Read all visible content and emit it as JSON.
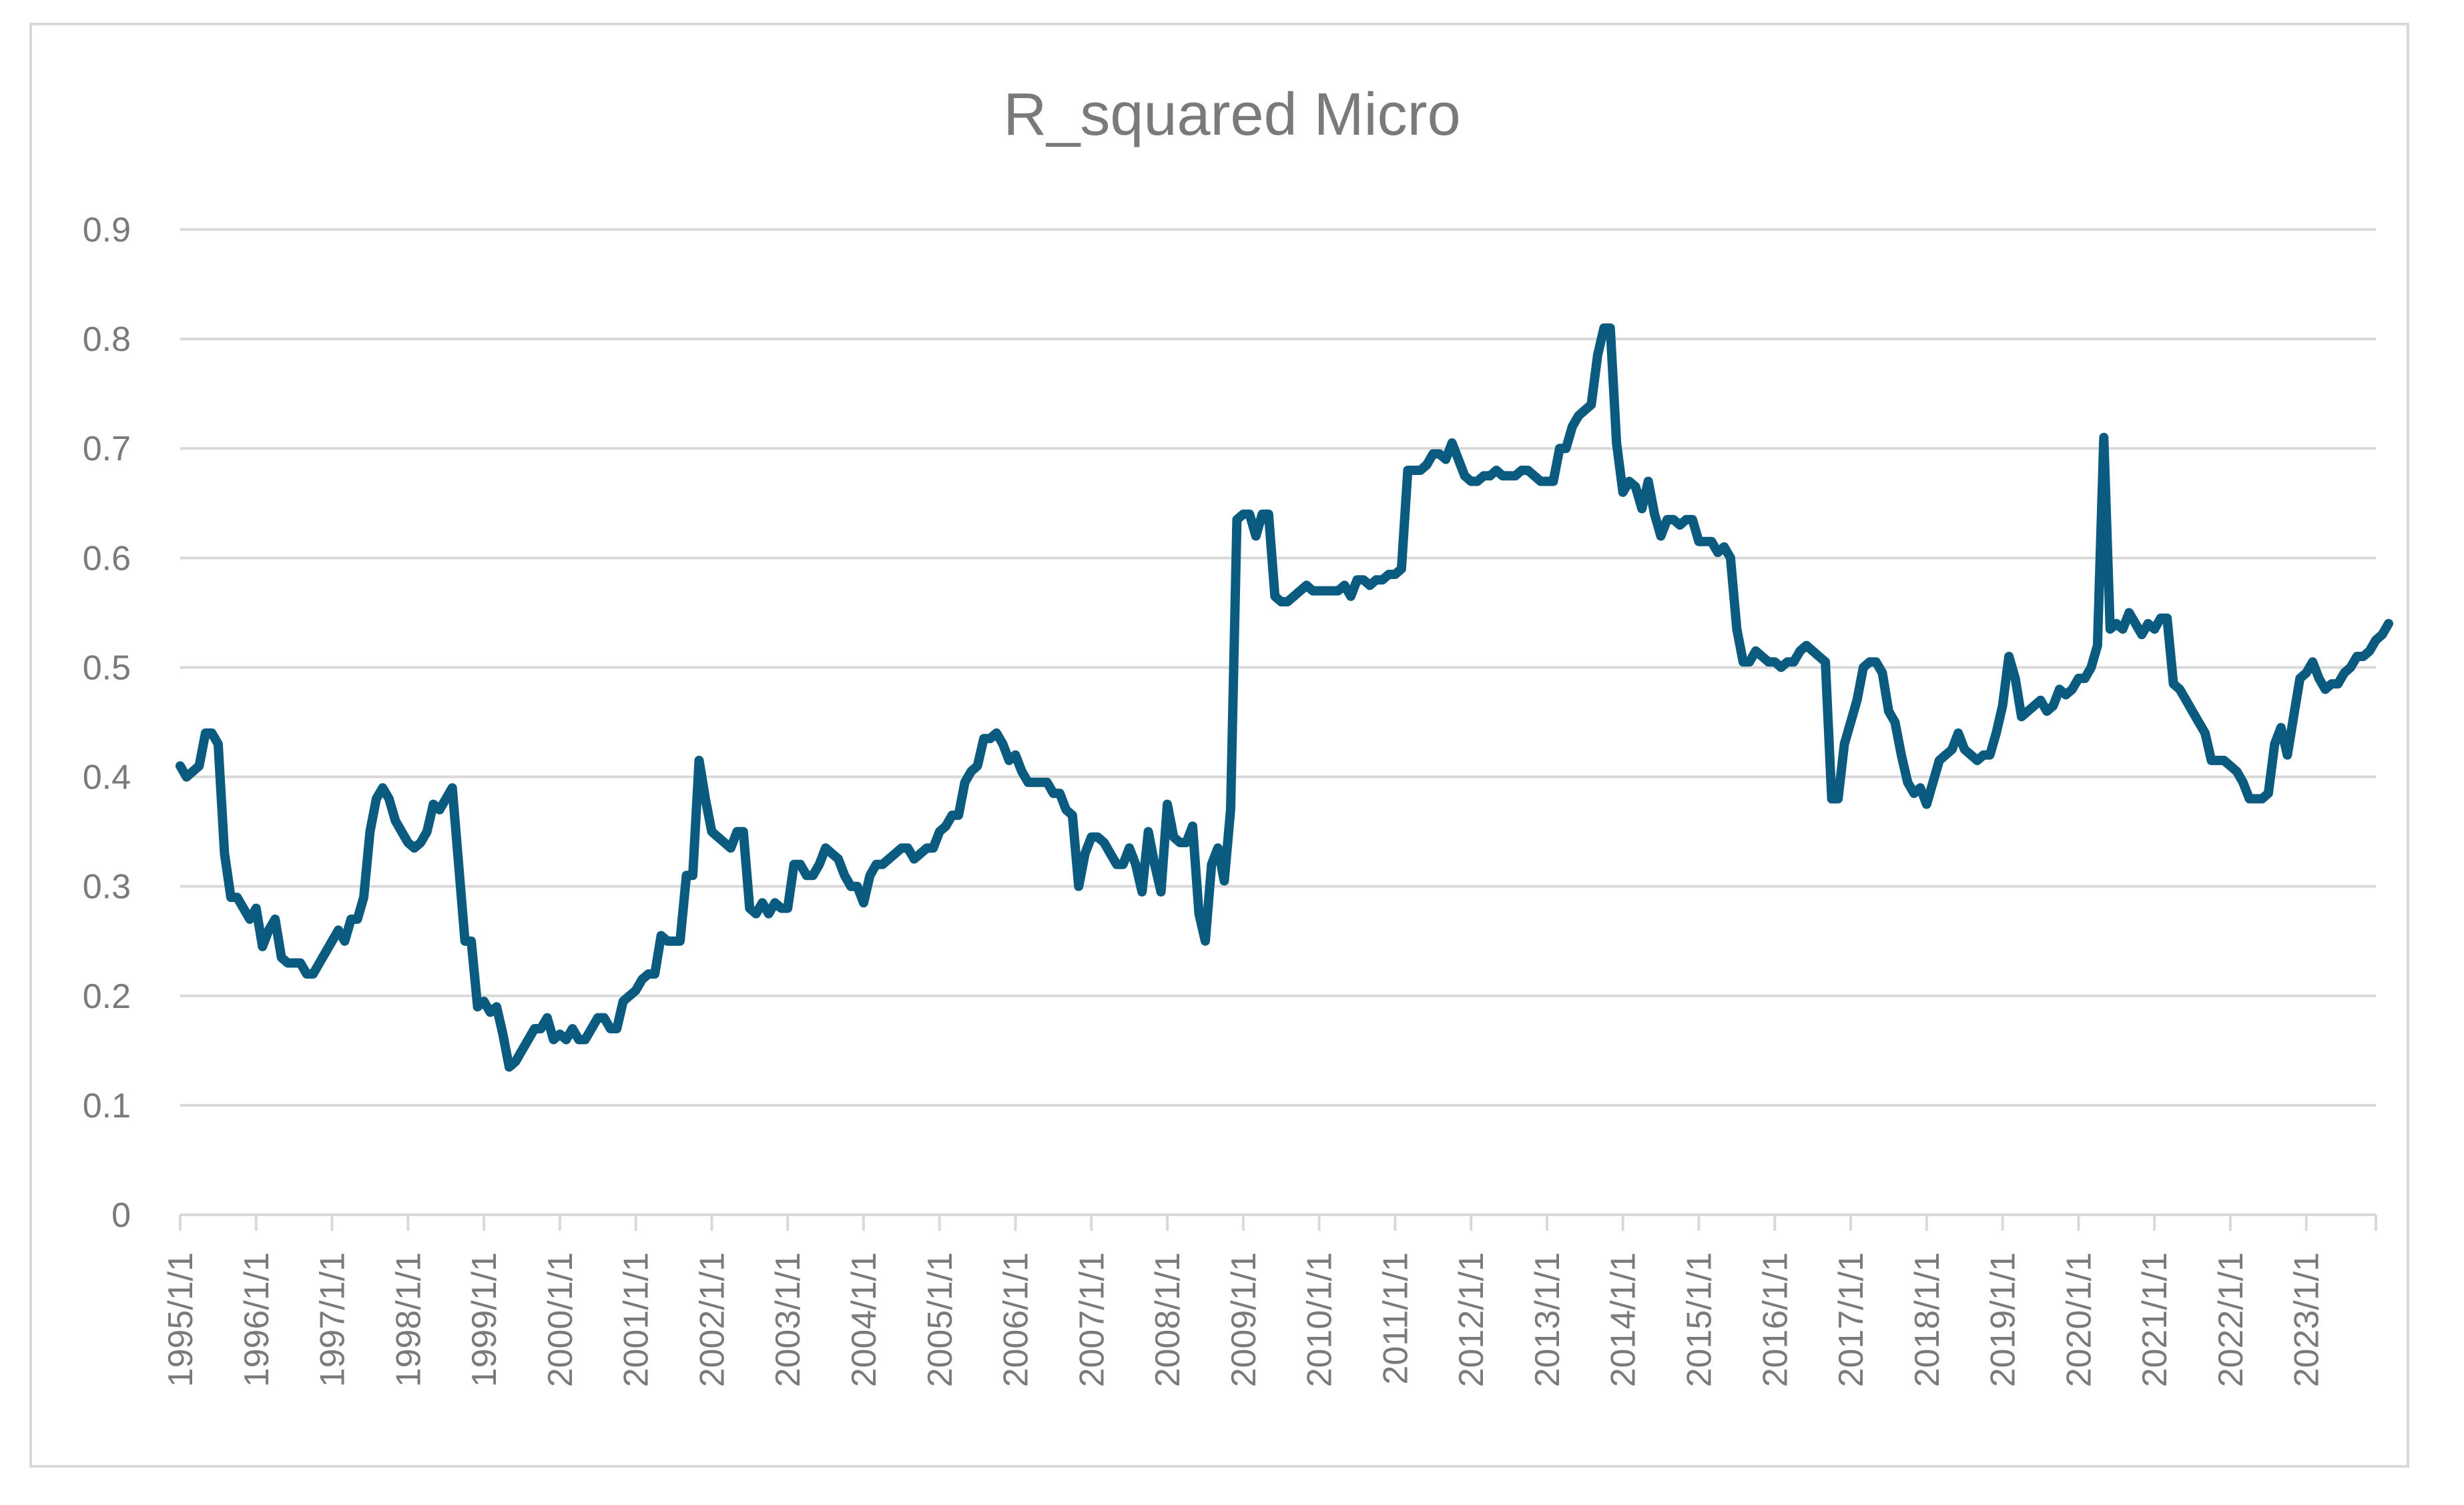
{
  "chart_data": {
    "type": "line",
    "title": "R_squared Micro",
    "xlabel": "",
    "ylabel": "",
    "ylim": [
      0,
      0.9
    ],
    "yticks": [
      "0",
      "0.1",
      "0.2",
      "0.3",
      "0.4",
      "0.5",
      "0.6",
      "0.7",
      "0.8",
      "0.9"
    ],
    "xticks": [
      "1995/1/1",
      "1996/1/1",
      "1997/1/1",
      "1998/1/1",
      "1999/1/1",
      "2000/1/1",
      "2001/1/1",
      "2002/1/1",
      "2003/1/1",
      "2004/1/1",
      "2005/1/1",
      "2006/1/1",
      "2007/1/1",
      "2008/1/1",
      "2009/1/1",
      "2010/1/1",
      "2011/1/1",
      "2012/1/1",
      "2013/1/1",
      "2014/1/1",
      "2015/1/1",
      "2016/1/1",
      "2017/1/1",
      "2018/1/1",
      "2019/1/1",
      "2020/1/1",
      "2021/1/1",
      "2022/1/1",
      "2023/1/1"
    ],
    "xlim": [
      "1995-01",
      "2023-12"
    ],
    "grid": true,
    "legend": "none",
    "series_color": "#0b5b80",
    "points": [
      [
        "1995-01",
        0.41
      ],
      [
        "1995-02",
        0.4
      ],
      [
        "1995-04",
        0.41
      ],
      [
        "1995-05",
        0.44
      ],
      [
        "1995-06",
        0.44
      ],
      [
        "1995-07",
        0.43
      ],
      [
        "1995-08",
        0.33
      ],
      [
        "1995-09",
        0.29
      ],
      [
        "1995-10",
        0.29
      ],
      [
        "1995-11",
        0.28
      ],
      [
        "1995-12",
        0.27
      ],
      [
        "1996-01",
        0.28
      ],
      [
        "1996-02",
        0.245
      ],
      [
        "1996-03",
        0.26
      ],
      [
        "1996-04",
        0.27
      ],
      [
        "1996-05",
        0.235
      ],
      [
        "1996-06",
        0.23
      ],
      [
        "1996-08",
        0.23
      ],
      [
        "1996-09",
        0.22
      ],
      [
        "1996-10",
        0.22
      ],
      [
        "1996-12",
        0.24
      ],
      [
        "1997-02",
        0.26
      ],
      [
        "1997-03",
        0.25
      ],
      [
        "1997-04",
        0.27
      ],
      [
        "1997-05",
        0.27
      ],
      [
        "1997-06",
        0.29
      ],
      [
        "1997-07",
        0.35
      ],
      [
        "1997-08",
        0.38
      ],
      [
        "1997-09",
        0.39
      ],
      [
        "1997-10",
        0.38
      ],
      [
        "1997-11",
        0.36
      ],
      [
        "1997-12",
        0.35
      ],
      [
        "1998-01",
        0.34
      ],
      [
        "1998-02",
        0.335
      ],
      [
        "1998-03",
        0.34
      ],
      [
        "1998-04",
        0.35
      ],
      [
        "1998-05",
        0.375
      ],
      [
        "1998-06",
        0.37
      ],
      [
        "1998-07",
        0.38
      ],
      [
        "1998-08",
        0.39
      ],
      [
        "1998-09",
        0.32
      ],
      [
        "1998-10",
        0.25
      ],
      [
        "1998-11",
        0.25
      ],
      [
        "1998-12",
        0.19
      ],
      [
        "1999-01",
        0.195
      ],
      [
        "1999-02",
        0.185
      ],
      [
        "1999-03",
        0.19
      ],
      [
        "1999-04",
        0.165
      ],
      [
        "1999-05",
        0.135
      ],
      [
        "1999-06",
        0.14
      ],
      [
        "1999-07",
        0.15
      ],
      [
        "1999-08",
        0.16
      ],
      [
        "1999-09",
        0.17
      ],
      [
        "1999-10",
        0.17
      ],
      [
        "1999-11",
        0.18
      ],
      [
        "1999-12",
        0.16
      ],
      [
        "2000-01",
        0.165
      ],
      [
        "2000-02",
        0.16
      ],
      [
        "2000-03",
        0.17
      ],
      [
        "2000-04",
        0.16
      ],
      [
        "2000-05",
        0.16
      ],
      [
        "2000-06",
        0.17
      ],
      [
        "2000-07",
        0.18
      ],
      [
        "2000-08",
        0.18
      ],
      [
        "2000-09",
        0.17
      ],
      [
        "2000-10",
        0.17
      ],
      [
        "2000-11",
        0.195
      ],
      [
        "2000-12",
        0.2
      ],
      [
        "2001-01",
        0.205
      ],
      [
        "2001-02",
        0.215
      ],
      [
        "2001-03",
        0.22
      ],
      [
        "2001-04",
        0.22
      ],
      [
        "2001-05",
        0.255
      ],
      [
        "2001-06",
        0.25
      ],
      [
        "2001-07",
        0.25
      ],
      [
        "2001-08",
        0.25
      ],
      [
        "2001-09",
        0.31
      ],
      [
        "2001-10",
        0.31
      ],
      [
        "2001-11",
        0.415
      ],
      [
        "2001-12",
        0.38
      ],
      [
        "2002-01",
        0.35
      ],
      [
        "2002-02",
        0.345
      ],
      [
        "2002-03",
        0.34
      ],
      [
        "2002-04",
        0.335
      ],
      [
        "2002-05",
        0.35
      ],
      [
        "2002-06",
        0.35
      ],
      [
        "2002-07",
        0.28
      ],
      [
        "2002-08",
        0.275
      ],
      [
        "2002-09",
        0.285
      ],
      [
        "2002-10",
        0.275
      ],
      [
        "2002-11",
        0.285
      ],
      [
        "2002-12",
        0.28
      ],
      [
        "2003-01",
        0.28
      ],
      [
        "2003-02",
        0.32
      ],
      [
        "2003-03",
        0.32
      ],
      [
        "2003-04",
        0.31
      ],
      [
        "2003-05",
        0.31
      ],
      [
        "2003-06",
        0.32
      ],
      [
        "2003-07",
        0.335
      ],
      [
        "2003-08",
        0.33
      ],
      [
        "2003-09",
        0.325
      ],
      [
        "2003-10",
        0.31
      ],
      [
        "2003-11",
        0.3
      ],
      [
        "2003-12",
        0.3
      ],
      [
        "2004-01",
        0.285
      ],
      [
        "2004-02",
        0.31
      ],
      [
        "2004-03",
        0.32
      ],
      [
        "2004-04",
        0.32
      ],
      [
        "2004-05",
        0.325
      ],
      [
        "2004-06",
        0.33
      ],
      [
        "2004-07",
        0.335
      ],
      [
        "2004-08",
        0.335
      ],
      [
        "2004-09",
        0.325
      ],
      [
        "2004-10",
        0.33
      ],
      [
        "2004-11",
        0.335
      ],
      [
        "2004-12",
        0.335
      ],
      [
        "2005-01",
        0.35
      ],
      [
        "2005-02",
        0.355
      ],
      [
        "2005-03",
        0.365
      ],
      [
        "2005-04",
        0.365
      ],
      [
        "2005-05",
        0.395
      ],
      [
        "2005-06",
        0.405
      ],
      [
        "2005-07",
        0.41
      ],
      [
        "2005-08",
        0.435
      ],
      [
        "2005-09",
        0.435
      ],
      [
        "2005-10",
        0.44
      ],
      [
        "2005-11",
        0.43
      ],
      [
        "2005-12",
        0.415
      ],
      [
        "2006-01",
        0.42
      ],
      [
        "2006-02",
        0.405
      ],
      [
        "2006-03",
        0.395
      ],
      [
        "2006-04",
        0.395
      ],
      [
        "2006-05",
        0.395
      ],
      [
        "2006-06",
        0.395
      ],
      [
        "2006-07",
        0.385
      ],
      [
        "2006-08",
        0.385
      ],
      [
        "2006-09",
        0.37
      ],
      [
        "2006-10",
        0.365
      ],
      [
        "2006-11",
        0.3
      ],
      [
        "2006-12",
        0.33
      ],
      [
        "2007-01",
        0.345
      ],
      [
        "2007-02",
        0.345
      ],
      [
        "2007-03",
        0.34
      ],
      [
        "2007-04",
        0.33
      ],
      [
        "2007-05",
        0.32
      ],
      [
        "2007-06",
        0.32
      ],
      [
        "2007-07",
        0.335
      ],
      [
        "2007-08",
        0.32
      ],
      [
        "2007-09",
        0.295
      ],
      [
        "2007-10",
        0.35
      ],
      [
        "2007-11",
        0.32
      ],
      [
        "2007-12",
        0.295
      ],
      [
        "2008-01",
        0.375
      ],
      [
        "2008-02",
        0.345
      ],
      [
        "2008-03",
        0.34
      ],
      [
        "2008-04",
        0.34
      ],
      [
        "2008-05",
        0.355
      ],
      [
        "2008-06",
        0.275
      ],
      [
        "2008-07",
        0.25
      ],
      [
        "2008-08",
        0.32
      ],
      [
        "2008-09",
        0.335
      ],
      [
        "2008-10",
        0.305
      ],
      [
        "2008-11",
        0.37
      ],
      [
        "2008-12",
        0.635
      ],
      [
        "2009-01",
        0.64
      ],
      [
        "2009-02",
        0.64
      ],
      [
        "2009-03",
        0.62
      ],
      [
        "2009-04",
        0.64
      ],
      [
        "2009-05",
        0.64
      ],
      [
        "2009-06",
        0.565
      ],
      [
        "2009-07",
        0.56
      ],
      [
        "2009-08",
        0.56
      ],
      [
        "2009-09",
        0.565
      ],
      [
        "2009-10",
        0.57
      ],
      [
        "2009-11",
        0.575
      ],
      [
        "2009-12",
        0.57
      ],
      [
        "2010-01",
        0.57
      ],
      [
        "2010-02",
        0.57
      ],
      [
        "2010-03",
        0.57
      ],
      [
        "2010-04",
        0.57
      ],
      [
        "2010-05",
        0.575
      ],
      [
        "2010-06",
        0.565
      ],
      [
        "2010-07",
        0.58
      ],
      [
        "2010-08",
        0.58
      ],
      [
        "2010-09",
        0.575
      ],
      [
        "2010-10",
        0.58
      ],
      [
        "2010-11",
        0.58
      ],
      [
        "2010-12",
        0.585
      ],
      [
        "2011-01",
        0.585
      ],
      [
        "2011-02",
        0.59
      ],
      [
        "2011-03",
        0.68
      ],
      [
        "2011-04",
        0.68
      ],
      [
        "2011-05",
        0.68
      ],
      [
        "2011-06",
        0.685
      ],
      [
        "2011-07",
        0.695
      ],
      [
        "2011-08",
        0.695
      ],
      [
        "2011-09",
        0.69
      ],
      [
        "2011-10",
        0.705
      ],
      [
        "2011-11",
        0.69
      ],
      [
        "2011-12",
        0.675
      ],
      [
        "2012-01",
        0.67
      ],
      [
        "2012-02",
        0.67
      ],
      [
        "2012-03",
        0.675
      ],
      [
        "2012-04",
        0.675
      ],
      [
        "2012-05",
        0.68
      ],
      [
        "2012-06",
        0.675
      ],
      [
        "2012-07",
        0.675
      ],
      [
        "2012-08",
        0.675
      ],
      [
        "2012-09",
        0.68
      ],
      [
        "2012-10",
        0.68
      ],
      [
        "2012-11",
        0.675
      ],
      [
        "2012-12",
        0.67
      ],
      [
        "2013-01",
        0.67
      ],
      [
        "2013-02",
        0.67
      ],
      [
        "2013-03",
        0.7
      ],
      [
        "2013-04",
        0.7
      ],
      [
        "2013-05",
        0.72
      ],
      [
        "2013-06",
        0.73
      ],
      [
        "2013-07",
        0.735
      ],
      [
        "2013-08",
        0.74
      ],
      [
        "2013-09",
        0.785
      ],
      [
        "2013-10",
        0.81
      ],
      [
        "2013-11",
        0.81
      ],
      [
        "2013-12",
        0.705
      ],
      [
        "2014-01",
        0.66
      ],
      [
        "2014-02",
        0.67
      ],
      [
        "2014-03",
        0.665
      ],
      [
        "2014-04",
        0.645
      ],
      [
        "2014-05",
        0.67
      ],
      [
        "2014-06",
        0.64
      ],
      [
        "2014-07",
        0.62
      ],
      [
        "2014-08",
        0.635
      ],
      [
        "2014-09",
        0.635
      ],
      [
        "2014-10",
        0.63
      ],
      [
        "2014-11",
        0.635
      ],
      [
        "2014-12",
        0.635
      ],
      [
        "2015-01",
        0.615
      ],
      [
        "2015-02",
        0.615
      ],
      [
        "2015-03",
        0.615
      ],
      [
        "2015-04",
        0.605
      ],
      [
        "2015-05",
        0.61
      ],
      [
        "2015-06",
        0.6
      ],
      [
        "2015-07",
        0.535
      ],
      [
        "2015-08",
        0.505
      ],
      [
        "2015-09",
        0.505
      ],
      [
        "2015-10",
        0.515
      ],
      [
        "2015-11",
        0.51
      ],
      [
        "2015-12",
        0.505
      ],
      [
        "2016-01",
        0.505
      ],
      [
        "2016-02",
        0.5
      ],
      [
        "2016-03",
        0.505
      ],
      [
        "2016-04",
        0.505
      ],
      [
        "2016-05",
        0.515
      ],
      [
        "2016-06",
        0.52
      ],
      [
        "2016-07",
        0.515
      ],
      [
        "2016-08",
        0.51
      ],
      [
        "2016-09",
        0.505
      ],
      [
        "2016-10",
        0.38
      ],
      [
        "2016-11",
        0.38
      ],
      [
        "2016-12",
        0.43
      ],
      [
        "2017-02",
        0.47
      ],
      [
        "2017-03",
        0.5
      ],
      [
        "2017-04",
        0.505
      ],
      [
        "2017-05",
        0.505
      ],
      [
        "2017-06",
        0.495
      ],
      [
        "2017-07",
        0.46
      ],
      [
        "2017-08",
        0.45
      ],
      [
        "2017-09",
        0.42
      ],
      [
        "2017-10",
        0.395
      ],
      [
        "2017-11",
        0.385
      ],
      [
        "2017-12",
        0.39
      ],
      [
        "2018-01",
        0.375
      ],
      [
        "2018-02",
        0.395
      ],
      [
        "2018-03",
        0.415
      ],
      [
        "2018-04",
        0.42
      ],
      [
        "2018-05",
        0.425
      ],
      [
        "2018-06",
        0.44
      ],
      [
        "2018-07",
        0.425
      ],
      [
        "2018-08",
        0.42
      ],
      [
        "2018-09",
        0.415
      ],
      [
        "2018-10",
        0.42
      ],
      [
        "2018-11",
        0.42
      ],
      [
        "2018-12",
        0.44
      ],
      [
        "2019-01",
        0.465
      ],
      [
        "2019-02",
        0.51
      ],
      [
        "2019-03",
        0.49
      ],
      [
        "2019-04",
        0.455
      ],
      [
        "2019-05",
        0.46
      ],
      [
        "2019-06",
        0.465
      ],
      [
        "2019-07",
        0.47
      ],
      [
        "2019-08",
        0.46
      ],
      [
        "2019-09",
        0.465
      ],
      [
        "2019-10",
        0.48
      ],
      [
        "2019-11",
        0.475
      ],
      [
        "2019-12",
        0.48
      ],
      [
        "2020-01",
        0.49
      ],
      [
        "2020-02",
        0.49
      ],
      [
        "2020-03",
        0.5
      ],
      [
        "2020-04",
        0.52
      ],
      [
        "2020-05",
        0.71
      ],
      [
        "2020-06",
        0.535
      ],
      [
        "2020-07",
        0.54
      ],
      [
        "2020-08",
        0.535
      ],
      [
        "2020-09",
        0.55
      ],
      [
        "2020-10",
        0.54
      ],
      [
        "2020-11",
        0.53
      ],
      [
        "2020-12",
        0.54
      ],
      [
        "2021-01",
        0.535
      ],
      [
        "2021-02",
        0.545
      ],
      [
        "2021-03",
        0.545
      ],
      [
        "2021-04",
        0.485
      ],
      [
        "2021-05",
        0.48
      ],
      [
        "2021-06",
        0.47
      ],
      [
        "2021-07",
        0.46
      ],
      [
        "2021-08",
        0.45
      ],
      [
        "2021-09",
        0.44
      ],
      [
        "2021-10",
        0.415
      ],
      [
        "2021-11",
        0.415
      ],
      [
        "2021-12",
        0.415
      ],
      [
        "2022-01",
        0.41
      ],
      [
        "2022-02",
        0.405
      ],
      [
        "2022-03",
        0.395
      ],
      [
        "2022-04",
        0.38
      ],
      [
        "2022-05",
        0.38
      ],
      [
        "2022-06",
        0.38
      ],
      [
        "2022-07",
        0.385
      ],
      [
        "2022-08",
        0.43
      ],
      [
        "2022-09",
        0.445
      ],
      [
        "2022-10",
        0.42
      ],
      [
        "2022-11",
        0.455
      ],
      [
        "2022-12",
        0.49
      ],
      [
        "2023-01",
        0.495
      ],
      [
        "2023-02",
        0.505
      ],
      [
        "2023-03",
        0.49
      ],
      [
        "2023-04",
        0.48
      ],
      [
        "2023-05",
        0.485
      ],
      [
        "2023-06",
        0.485
      ],
      [
        "2023-07",
        0.495
      ],
      [
        "2023-08",
        0.5
      ],
      [
        "2023-09",
        0.51
      ],
      [
        "2023-10",
        0.51
      ],
      [
        "2023-11",
        0.515
      ],
      [
        "2023-12",
        0.525
      ],
      [
        "2024-01",
        0.53
      ],
      [
        "2024-02",
        0.54
      ]
    ]
  }
}
